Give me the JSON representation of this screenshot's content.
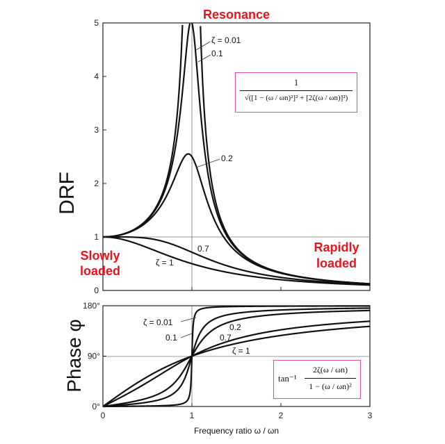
{
  "chart_data": [
    {
      "type": "line",
      "title": "Resonance",
      "ylabel": "DRF",
      "xlim": [
        0,
        3
      ],
      "ylim": [
        0,
        5
      ],
      "xticks": [
        "0",
        "1",
        "2",
        "3"
      ],
      "yticks": [
        "0",
        "1",
        "2",
        "3",
        "4",
        "5"
      ],
      "series": [
        {
          "name": "ζ = 0.01",
          "zeta": 0.01
        },
        {
          "name": "0.1",
          "zeta": 0.1
        },
        {
          "name": "0.2",
          "zeta": 0.2
        },
        {
          "name": "0.7",
          "zeta": 0.7
        },
        {
          "name": "ζ = 1",
          "zeta": 1.0
        }
      ],
      "annotations": {
        "left": [
          "Slowly",
          "loaded"
        ],
        "right": [
          "Rapidly",
          "loaded"
        ]
      },
      "formula": {
        "numerator": "1",
        "denominator": "√([1 − (ω / ωn)²]² + [2ζ(ω / ωn)]²)"
      }
    },
    {
      "type": "line",
      "ylabel": "Phase φ",
      "xlabel": "Frequency ratio ω / ωn",
      "xlim": [
        0,
        3
      ],
      "ylim": [
        0,
        180
      ],
      "xticks": [
        "0",
        "1",
        "2",
        "3"
      ],
      "yticks": [
        "0°",
        "90°",
        "180°"
      ],
      "series": [
        {
          "name": "ζ = 0.01",
          "zeta": 0.01
        },
        {
          "name": "0.1",
          "zeta": 0.1
        },
        {
          "name": "0.2",
          "zeta": 0.2
        },
        {
          "name": "0.7",
          "zeta": 0.7
        },
        {
          "name": "ζ = 1",
          "zeta": 1.0
        }
      ],
      "formula": {
        "prefix": "tan⁻¹",
        "numerator": "2ζ(ω / ωn)",
        "denominator": "1 − (ω / ωn)²"
      }
    }
  ]
}
